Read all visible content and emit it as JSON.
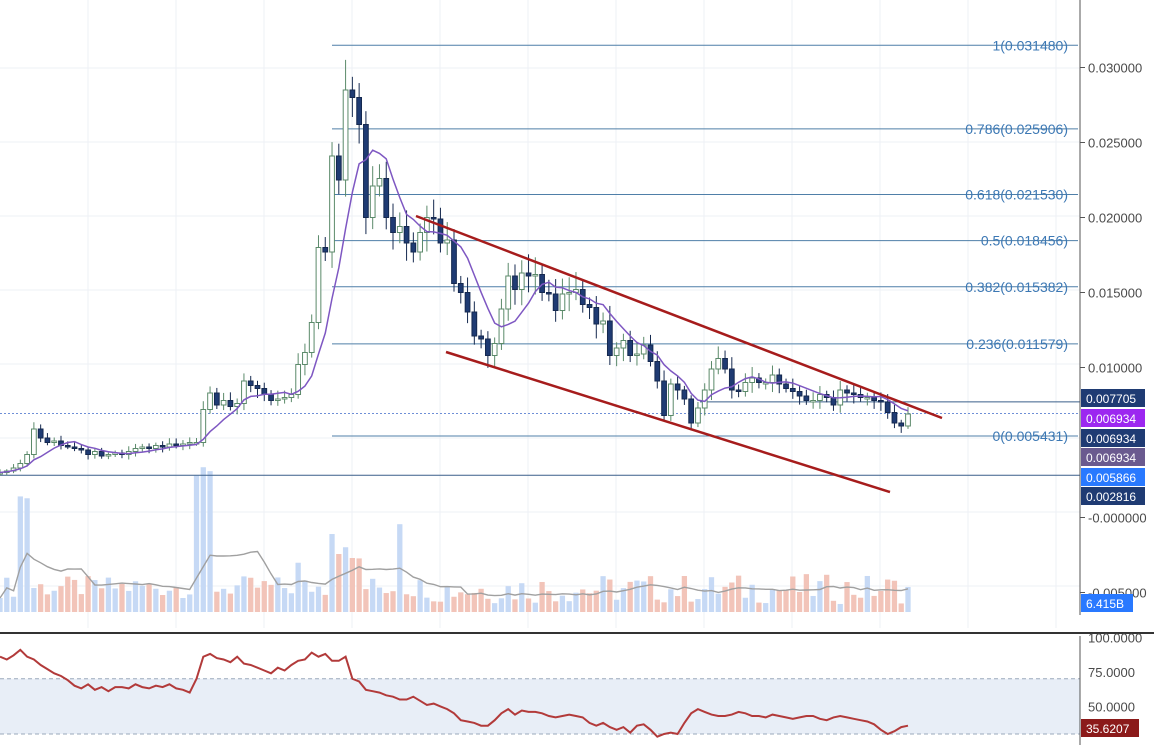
{
  "colors": {
    "bull_fill": "#ffffff",
    "bull_edge": "#5b8a6a",
    "bear_fill": "#1f3b73",
    "bear_edge": "#15294f",
    "ma": "#7e57c2",
    "fib": "#4f7fa8",
    "fib_text": "#3c78b4",
    "channel": "#a61c1c",
    "vol_up": "#c6d9f5",
    "vol_down": "#f2c4b9",
    "vol_ma": "#a0a0a0",
    "rsi": "#b23a3a",
    "rsi_band": "#e8eef7",
    "grid": "#eef1f5",
    "axis": "#555555"
  },
  "price_axis": {
    "labels": [
      "0.030000",
      "0.025000",
      "0.020000",
      "0.015000",
      "0.010000",
      "-0.000000",
      "-0.005000"
    ]
  },
  "rsi_axis": {
    "labels": [
      "100.0000",
      "75.0000",
      "50.0000"
    ]
  },
  "fib_levels": [
    {
      "label": "1(0.031480)",
      "value": 0.03148
    },
    {
      "label": "0.786(0.025906)",
      "value": 0.025906
    },
    {
      "label": "0.618(0.021530)",
      "value": 0.02153
    },
    {
      "label": "0.5(0.018456)",
      "value": 0.018456
    },
    {
      "label": "0.382(0.015382)",
      "value": 0.015382
    },
    {
      "label": "0.236(0.011579)",
      "value": 0.011579
    },
    {
      "label": "0(0.005431)",
      "value": 0.005431
    }
  ],
  "price_tags": [
    {
      "text": "0.007705",
      "value": 0.007705,
      "color": "#1f3b73"
    },
    {
      "text": "0.006934",
      "value": 0.006934,
      "color": "#9c27f0"
    },
    {
      "text": "0.006934",
      "value": 0.006934,
      "color": "#1f3b73"
    },
    {
      "text": "0.006934",
      "value": 0.006934,
      "color": "#6a5a8f"
    },
    {
      "text": "0.005866",
      "value": 0.005866,
      "color": "#2979ff"
    },
    {
      "text": "0.002816",
      "value": 0.002816,
      "color": "#1f3b73"
    }
  ],
  "volume_tag": {
    "text": "6.415B"
  },
  "rsi_tag": {
    "text": "35.6207"
  },
  "chart_data": {
    "type": "candlestick",
    "price_range": [
      -0.0065,
      0.0345
    ],
    "support_line_value": 0.002816,
    "current_price_line_value": 0.006934,
    "closes": [
      0.003,
      0.0031,
      0.0033,
      0.0036,
      0.0042,
      0.0059,
      0.0053,
      0.005,
      0.0051,
      0.0048,
      0.0047,
      0.0046,
      0.0045,
      0.0042,
      0.0044,
      0.0041,
      0.0042,
      0.0043,
      0.0042,
      0.0044,
      0.0046,
      0.0047,
      0.0046,
      0.0048,
      0.0047,
      0.0049,
      0.0048,
      0.0049,
      0.005,
      0.005,
      0.0072,
      0.0083,
      0.0075,
      0.0078,
      0.0074,
      0.0076,
      0.0091,
      0.0088,
      0.0086,
      0.0082,
      0.0078,
      0.0079,
      0.008,
      0.0082,
      0.0102,
      0.011,
      0.013,
      0.018,
      0.0177,
      0.0241,
      0.0225,
      0.0285,
      0.028,
      0.0262,
      0.02,
      0.0221,
      0.0226,
      0.02,
      0.019,
      0.0194,
      0.0183,
      0.0177,
      0.019,
      0.02,
      0.0199,
      0.0183,
      0.0185,
      0.0156,
      0.015,
      0.0137,
      0.0121,
      0.0119,
      0.0108,
      0.0116,
      0.0139,
      0.0161,
      0.0152,
      0.0163,
      0.0161,
      0.0162,
      0.015,
      0.0149,
      0.0138,
      0.0149,
      0.015,
      0.0152,
      0.0142,
      0.014,
      0.0129,
      0.0131,
      0.0108,
      0.0113,
      0.0118,
      0.0108,
      0.0109,
      0.0115,
      0.0104,
      0.0091,
      0.0068,
      0.0089,
      0.0085,
      0.0079,
      0.0063,
      0.0073,
      0.0085,
      0.0099,
      0.0106,
      0.0099,
      0.0085,
      0.0084,
      0.009,
      0.0093,
      0.009,
      0.009,
      0.0095,
      0.0089,
      0.0086,
      0.0084,
      0.0081,
      0.0078,
      0.0078,
      0.0082,
      0.008,
      0.0075,
      0.0085,
      0.0083,
      0.0082,
      0.008,
      0.008,
      0.0078,
      0.0077,
      0.007,
      0.0063,
      0.0061,
      0.0069
    ],
    "volume_ma_note": "",
    "rsi_values": [
      86,
      84,
      87,
      91,
      86,
      84,
      80,
      77,
      74,
      72,
      69,
      65,
      63,
      66,
      62,
      64,
      61,
      64,
      64,
      63,
      66,
      64,
      63,
      65,
      64,
      66,
      63,
      62,
      60,
      70,
      86,
      88,
      85,
      84,
      82,
      86,
      81,
      80,
      78,
      76,
      74,
      78,
      76,
      80,
      83,
      84,
      89,
      86,
      88,
      83,
      83,
      86,
      70,
      68,
      62,
      61,
      60,
      58,
      57,
      55,
      55,
      57,
      54,
      51,
      52,
      50,
      48,
      45,
      40,
      39,
      38,
      36,
      36,
      40,
      45,
      48,
      44,
      47,
      46,
      46,
      45,
      43,
      42,
      43,
      44,
      43,
      42,
      38,
      36,
      38,
      35,
      33,
      35,
      31,
      36,
      37,
      33,
      28,
      30,
      31,
      30,
      38,
      45,
      48,
      46,
      44,
      43,
      43,
      44,
      46,
      45,
      43,
      43,
      42,
      44,
      43,
      42,
      41,
      42,
      43,
      43,
      41,
      40,
      42,
      43,
      42,
      41,
      40,
      39,
      37,
      33,
      30,
      32,
      35,
      36
    ]
  }
}
